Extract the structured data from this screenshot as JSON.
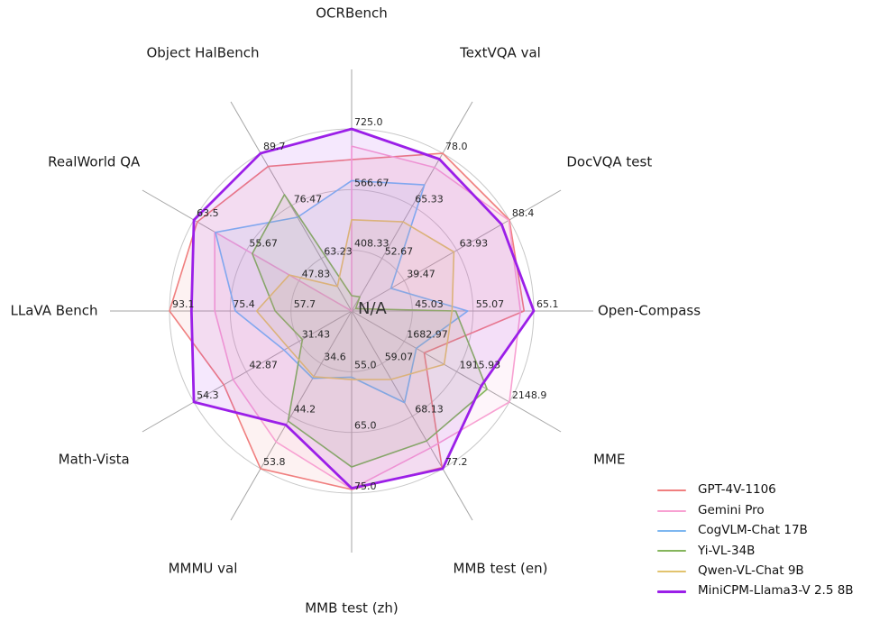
{
  "figure": {
    "background": "#ffffff"
  },
  "chart_data": {
    "type": "radar",
    "center_label": "N/A",
    "grid": {
      "ring_color": "#c8c8c8",
      "spoke_color": "#a6a6a6",
      "rings": 3,
      "legend_position": "lower right"
    },
    "axes": [
      {
        "label": "OCRBench",
        "min": 250,
        "max": 725,
        "ticks": [
          "408.33",
          "566.67",
          "725.0"
        ]
      },
      {
        "label": "TextVQA val",
        "min": 40,
        "max": 78,
        "ticks": [
          "52.67",
          "65.33",
          "78.0"
        ]
      },
      {
        "label": "DocVQA test",
        "min": 15,
        "max": 88.4,
        "ticks": [
          "39.47",
          "63.93",
          "88.4"
        ]
      },
      {
        "label": "Open-Compass",
        "min": 35,
        "max": 65.1,
        "ticks": [
          "45.03",
          "55.07",
          "65.1"
        ]
      },
      {
        "label": "MME",
        "min": 1450,
        "max": 2148.9,
        "ticks": [
          "1682.97",
          "1915.93",
          "2148.9"
        ]
      },
      {
        "label": "MMB test (en)",
        "min": 50,
        "max": 77.2,
        "ticks": [
          "59.07",
          "68.13",
          "77.2"
        ]
      },
      {
        "label": "MMB test (zh)",
        "min": 45,
        "max": 75,
        "ticks": [
          "55.0",
          "65.0",
          "75.0"
        ]
      },
      {
        "label": "MMMU val",
        "min": 25,
        "max": 53.8,
        "ticks": [
          "34.6",
          "44.2",
          "53.8"
        ]
      },
      {
        "label": "Math-Vista",
        "min": 20,
        "max": 54.3,
        "ticks": [
          "31.43",
          "42.87",
          "54.3"
        ]
      },
      {
        "label": "LLaVA Bench",
        "min": 40,
        "max": 93.1,
        "ticks": [
          "57.7",
          "75.4",
          "93.1"
        ]
      },
      {
        "label": "RealWorld QA",
        "min": 40,
        "max": 63.5,
        "ticks": [
          "47.83",
          "55.67",
          "63.5"
        ]
      },
      {
        "label": "Object HalBench",
        "min": 50,
        "max": 89.7,
        "ticks": [
          "63.23",
          "76.47",
          "89.7"
        ]
      }
    ],
    "series": [
      {
        "name": "GPT-4V-1106",
        "color": "#F07F7F",
        "line_width": 1.6,
        "values": [
          645,
          78.0,
          88.4,
          63.5,
          1771.5,
          77.0,
          74.4,
          53.8,
          47.8,
          93.1,
          63.0,
          86.4
        ]
      },
      {
        "name": "Gemini Pro",
        "color": "#F8A1D2",
        "line_width": 1.6,
        "values": [
          680,
          74.6,
          88.1,
          62.9,
          2148.9,
          73.6,
          74.3,
          48.9,
          45.8,
          79.9,
          60.4,
          null
        ]
      },
      {
        "name": "CogVLM-Chat 17B",
        "color": "#7EB7F0",
        "line_width": 1.6,
        "values": [
          590,
          70.4,
          33.3,
          54.2,
          1736.6,
          65.8,
          55.9,
          37.3,
          34.7,
          73.9,
          60.3,
          73.6
        ]
      },
      {
        "name": "Yi-VL-34B",
        "color": "#85B55C",
        "line_width": 1.6,
        "values": [
          290,
          43.4,
          16.9,
          52.2,
          2050.2,
          72.4,
          70.7,
          45.1,
          30.7,
          62.3,
          54.8,
          79.3
        ]
      },
      {
        "name": "Qwen-VL-Chat 9B",
        "color": "#E2C36E",
        "line_width": 1.6,
        "values": [
          488,
          61.5,
          62.6,
          51.6,
          1860.0,
          61.8,
          56.3,
          37.0,
          33.8,
          67.7,
          49.3,
          56.2
        ]
      },
      {
        "name": "MiniCPM-Llama3-V 2.5 8B",
        "color": "#9B1FE8",
        "line_width": 2.8,
        "values": [
          725,
          76.6,
          84.8,
          65.1,
          2024.6,
          77.2,
          74.2,
          45.8,
          54.3,
          86.7,
          63.5,
          89.7
        ]
      }
    ],
    "fill_opacity": 0.1
  }
}
